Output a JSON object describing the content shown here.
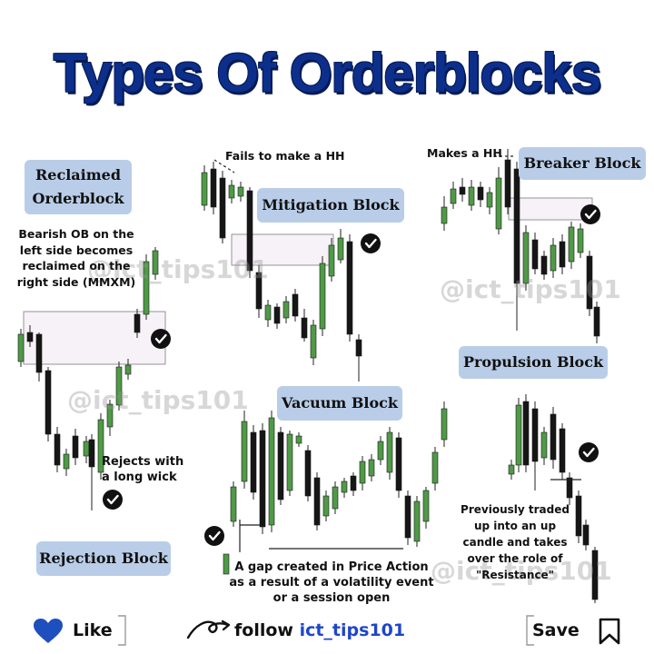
{
  "title": "Types Of Orderblocks",
  "watermark": "@ict_tips101",
  "labels": {
    "reclaimed": "Reclaimed Orderblock",
    "mitigation": "Mitigation Block",
    "breaker": "Breaker Block",
    "propulsion": "Propulsion Block",
    "vacuum": "Vacuum Block",
    "rejection": "Rejection Block"
  },
  "notes": {
    "reclaimed": "Bearish OB on the left side becomes reclaimed on the right side (MMXM)",
    "fails_hh": "Fails to make a HH",
    "makes_hh": "Makes a HH",
    "rejects": "Rejects with a long wick",
    "gap": "A gap created in Price Action as a result of a volatility event or a session open",
    "previously": "Previously traded up into an up candle and takes over the role of \"Resistance\""
  },
  "footer": {
    "like": "Like",
    "follow": "follow",
    "handle": "ict_tips101",
    "save": "Save"
  },
  "colors": {
    "title": "#0d2f8c",
    "pill": "#b9cde8",
    "bull": "#4f9a46",
    "bear": "#161616",
    "zone": "#f7f2f7",
    "like_heart": "#1e4fbf"
  },
  "icons": [
    "check-circle-icon",
    "heart-icon",
    "swirl-arrow-icon",
    "bookmark-icon"
  ]
}
